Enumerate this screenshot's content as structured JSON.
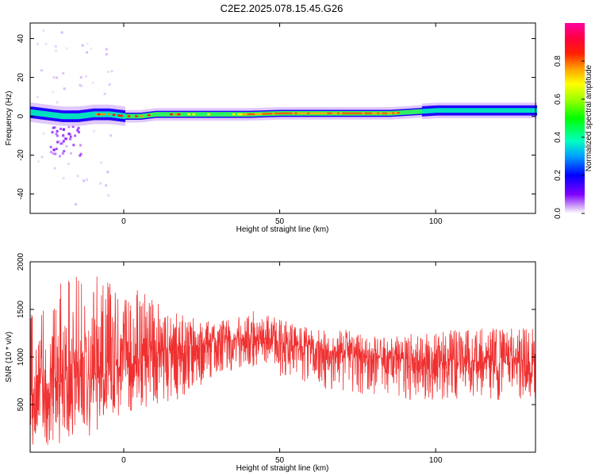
{
  "title": "C2E2.2025.078.15.45.G26",
  "chart_data": [
    {
      "type": "heatmap",
      "xlabel": "Height of straight line (km)",
      "ylabel": "Frequency (Hz)",
      "xlim": [
        -30,
        132
      ],
      "ylim": [
        -50,
        48
      ],
      "x_ticks": [
        0,
        50,
        100
      ],
      "y_ticks": [
        -40,
        -20,
        0,
        20,
        40
      ],
      "grid": false,
      "ridge": {
        "x": [
          -30,
          -25,
          -20,
          -15,
          -10,
          -5,
          0,
          5,
          10,
          15,
          20,
          30,
          40,
          50,
          60,
          70,
          80,
          85,
          90,
          95,
          100,
          105,
          110,
          120,
          132
        ],
        "freq": [
          2,
          1,
          0,
          0,
          1,
          1,
          0,
          0,
          1,
          1,
          1,
          1,
          1,
          1.5,
          1.5,
          1.5,
          1.5,
          1.5,
          2,
          2.5,
          3,
          3,
          3,
          3,
          3
        ]
      },
      "colorbar": {
        "label": "Normalized spectral amplitude",
        "range": [
          0,
          1
        ],
        "ticks": [
          0.0,
          0.2,
          0.4,
          0.6,
          0.8
        ],
        "tick_labels": [
          "0.0",
          "0.2",
          "0.4",
          "0.6",
          "0.8"
        ]
      }
    },
    {
      "type": "line",
      "xlabel": "Height of straight line (km)",
      "ylabel": "SNR (10 * v/v)",
      "xlim": [
        -30,
        132
      ],
      "ylim": [
        0,
        2000
      ],
      "x_ticks": [
        0,
        50,
        100
      ],
      "y_ticks": [
        500,
        1000,
        1500,
        2000
      ],
      "grid": false,
      "series": [
        {
          "color": "#f03030",
          "envelope": {
            "x": [
              -30,
              -25,
              -20,
              -15,
              -10,
              -5,
              0,
              5,
              10,
              15,
              20,
              25,
              30,
              35,
              40,
              45,
              50,
              55,
              60,
              65,
              70,
              75,
              80,
              85,
              90,
              95,
              100,
              105,
              110,
              115,
              120,
              125,
              132
            ],
            "low": [
              50,
              50,
              100,
              100,
              150,
              300,
              400,
              450,
              500,
              500,
              600,
              700,
              800,
              850,
              900,
              850,
              800,
              750,
              700,
              650,
              650,
              600,
              600,
              550,
              550,
              550,
              550,
              550,
              550,
              550,
              550,
              550,
              550
            ],
            "mid": [
              700,
              720,
              750,
              780,
              820,
              880,
              950,
              1000,
              1030,
              1060,
              1100,
              1130,
              1150,
              1180,
              1200,
              1180,
              1150,
              1120,
              1100,
              1080,
              1050,
              1030,
              1000,
              980,
              980,
              960,
              950,
              950,
              950,
              950,
              950,
              950,
              960
            ],
            "high": [
              1600,
              1700,
              1800,
              1900,
              1950,
              1800,
              1700,
              1750,
              1600,
              1500,
              1450,
              1400,
              1400,
              1450,
              1500,
              1450,
              1400,
              1350,
              1300,
              1300,
              1300,
              1250,
              1250,
              1200,
              1250,
              1250,
              1250,
              1300,
              1300,
              1300,
              1300,
              1300,
              1350
            ]
          }
        }
      ]
    }
  ]
}
